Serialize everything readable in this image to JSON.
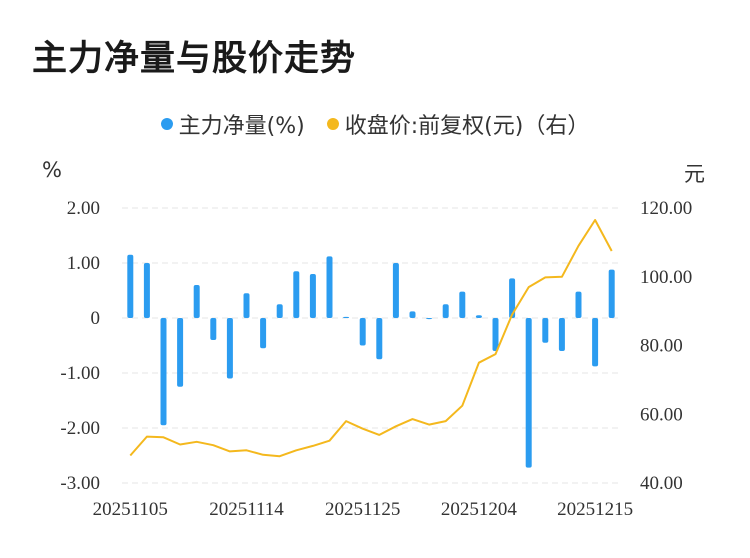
{
  "chart_data": {
    "type": "bar",
    "title": "主力净量与股价走势",
    "legend": [
      {
        "name": "主力净量(%)",
        "color": "#2b9cf0"
      },
      {
        "name": "收盘价:前复权(元)（右）",
        "color": "#f4b81d"
      }
    ],
    "left_unit": "%",
    "right_unit": "元",
    "left_ylim": [
      -3.0,
      2.0
    ],
    "right_ylim": [
      40.0,
      120.0
    ],
    "left_ticks": [
      "2.00",
      "1.00",
      "0",
      "-1.00",
      "-2.00",
      "-3.00"
    ],
    "right_ticks": [
      "120.00",
      "100.00",
      "80.00",
      "60.00",
      "40.00"
    ],
    "x_tick_labels": [
      {
        "label": "20251105",
        "index": 0
      },
      {
        "label": "20251114",
        "index": 7
      },
      {
        "label": "20251125",
        "index": 14
      },
      {
        "label": "20251204",
        "index": 21
      },
      {
        "label": "20251215",
        "index": 28
      }
    ],
    "series": [
      {
        "name": "主力净量(%)",
        "kind": "bar",
        "axis": "left",
        "values": [
          1.15,
          1.0,
          -1.95,
          -1.25,
          0.6,
          -0.4,
          -1.1,
          0.45,
          -0.55,
          0.25,
          0.85,
          0.8,
          1.12,
          0.02,
          -0.5,
          -0.75,
          1.0,
          0.12,
          -0.02,
          0.25,
          0.48,
          0.05,
          -0.6,
          0.72,
          -2.72,
          -0.45,
          -0.6,
          0.48,
          -0.88,
          0.88
        ]
      },
      {
        "name": "收盘价:前复权(元)（右）",
        "kind": "line",
        "axis": "right",
        "values": [
          48.0,
          53.5,
          53.3,
          51.2,
          52.0,
          51.0,
          49.2,
          49.5,
          48.2,
          47.8,
          49.5,
          50.8,
          52.3,
          58.0,
          55.8,
          54.0,
          56.5,
          58.6,
          57.0,
          58.0,
          62.5,
          75.0,
          77.5,
          89.0,
          97.0,
          99.8,
          100.0,
          109.0,
          116.5,
          107.5
        ]
      }
    ],
    "grid": true
  }
}
